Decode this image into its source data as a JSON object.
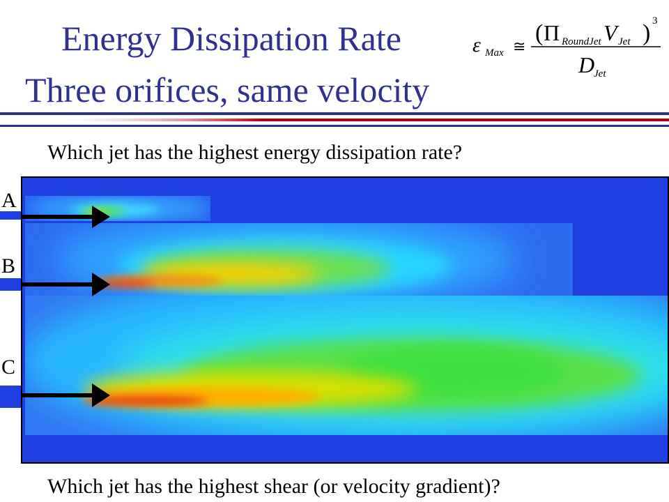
{
  "slide": {
    "title_line1": "Energy Dissipation Rate",
    "title_line2": "Three orifices, same velocity",
    "question_top": "Which jet has the highest energy dissipation rate?",
    "question_bottom": "Which jet has the highest shear (or velocity gradient)?"
  },
  "formula": {
    "epsilon": "ε",
    "epsilon_sub": "Max",
    "approx": "≅",
    "numerator_open": "(",
    "pi": "Π",
    "pi_sub": "RoundJet",
    "velocity": "V",
    "velocity_sub": "Jet",
    "numerator_close": ")",
    "exponent": "3",
    "denominator": "D",
    "denominator_sub": "Jet"
  },
  "jets": [
    {
      "label": "A"
    },
    {
      "label": "B"
    },
    {
      "label": "C"
    }
  ],
  "colors": {
    "title": "#2e3192",
    "rule_blue": "#2e3192",
    "rule_red": "#b00020",
    "field_background": "#1f3fe0",
    "jet_hot": "#e83018",
    "jet_mid": "#ffd400",
    "jet_green": "#3ae040",
    "jet_cyan": "#20c8ff"
  }
}
